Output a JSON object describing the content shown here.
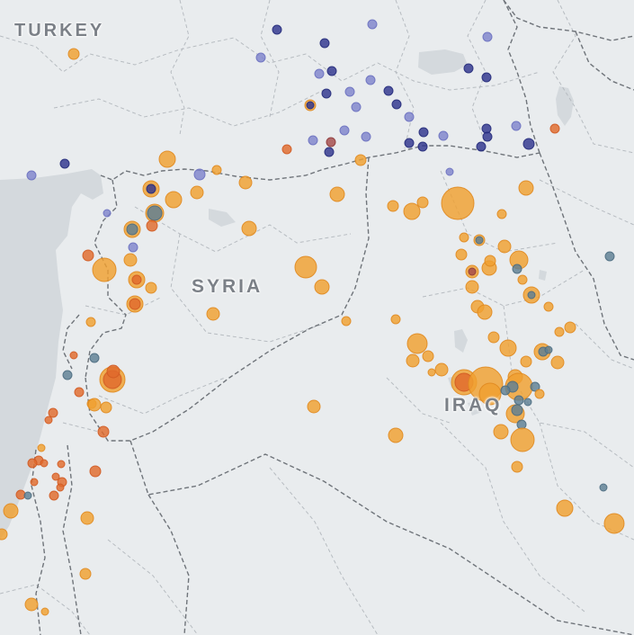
{
  "labels": {
    "turkey": "TURKEY",
    "syria": "SYRIA",
    "iraq": "IRAQ"
  },
  "colors": {
    "background": "#e9ecee",
    "water": "#d4d9dd",
    "border": "#6f747a",
    "province_border": "#b7bcc1",
    "orange": "#f0a030",
    "red_orange": "#e06a2c",
    "blue_light": "#7f84cc",
    "blue_dark": "#2f358e",
    "slate": "#5e7f94",
    "maroon": "#a44a4a"
  },
  "point_types": {
    "o": {
      "fill": "#f0a030",
      "stroke": "#e08a20"
    },
    "r": {
      "fill": "#e06a2c",
      "stroke": "#d05a22"
    },
    "b": {
      "fill": "#7f84cc",
      "stroke": "#6a70c0"
    },
    "d": {
      "fill": "#2f358e",
      "stroke": "#242a7a"
    },
    "s": {
      "fill": "#5e7f94",
      "stroke": "#4b6b80"
    },
    "m": {
      "fill": "#a44a4a",
      "stroke": "#8f3a3a"
    }
  },
  "event_points": [
    [
      "o",
      82,
      60,
      6
    ],
    [
      "d",
      308,
      33,
      5
    ],
    [
      "d",
      361,
      48,
      5
    ],
    [
      "b",
      414,
      27,
      5
    ],
    [
      "b",
      542,
      41,
      5
    ],
    [
      "b",
      290,
      64,
      5
    ],
    [
      "b",
      355,
      82,
      5
    ],
    [
      "d",
      369,
      79,
      5
    ],
    [
      "b",
      412,
      89,
      5
    ],
    [
      "d",
      521,
      76,
      5
    ],
    [
      "d",
      541,
      86,
      5
    ],
    [
      "b",
      389,
      102,
      5
    ],
    [
      "d",
      432,
      101,
      5
    ],
    [
      "d",
      363,
      104,
      5
    ],
    [
      "b",
      396,
      119,
      5
    ],
    [
      "d",
      441,
      116,
      5
    ],
    [
      "o",
      345,
      117,
      6
    ],
    [
      "d",
      345,
      117,
      4
    ],
    [
      "b",
      455,
      130,
      5
    ],
    [
      "b",
      383,
      145,
      5
    ],
    [
      "d",
      541,
      143,
      5
    ],
    [
      "b",
      574,
      140,
      5
    ],
    [
      "b",
      348,
      156,
      5
    ],
    [
      "m",
      368,
      158,
      5
    ],
    [
      "b",
      407,
      152,
      5
    ],
    [
      "d",
      455,
      159,
      5
    ],
    [
      "d",
      471,
      147,
      5
    ],
    [
      "b",
      493,
      151,
      5
    ],
    [
      "d",
      542,
      152,
      5
    ],
    [
      "d",
      470,
      163,
      5
    ],
    [
      "d",
      535,
      163,
      5
    ],
    [
      "d",
      588,
      160,
      6
    ],
    [
      "r",
      617,
      143,
      5
    ],
    [
      "r",
      319,
      166,
      5
    ],
    [
      "d",
      366,
      169,
      5
    ],
    [
      "o",
      401,
      178,
      6
    ],
    [
      "d",
      72,
      182,
      5
    ],
    [
      "b",
      35,
      195,
      5
    ],
    [
      "o",
      186,
      177,
      9
    ],
    [
      "o",
      241,
      189,
      5
    ],
    [
      "b",
      222,
      194,
      6
    ],
    [
      "o",
      273,
      203,
      7
    ],
    [
      "b",
      500,
      191,
      4
    ],
    [
      "o",
      168,
      210,
      9
    ],
    [
      "d",
      168,
      210,
      5
    ],
    [
      "o",
      193,
      222,
      9
    ],
    [
      "o",
      172,
      237,
      10
    ],
    [
      "s",
      172,
      237,
      8
    ],
    [
      "o",
      219,
      214,
      7
    ],
    [
      "o",
      375,
      216,
      8
    ],
    [
      "o",
      509,
      226,
      18
    ],
    [
      "o",
      585,
      209,
      8
    ],
    [
      "o",
      437,
      229,
      6
    ],
    [
      "o",
      458,
      235,
      9
    ],
    [
      "o",
      470,
      225,
      6
    ],
    [
      "b",
      119,
      237,
      4
    ],
    [
      "o",
      147,
      255,
      9
    ],
    [
      "s",
      147,
      255,
      6
    ],
    [
      "r",
      169,
      251,
      6
    ],
    [
      "o",
      277,
      254,
      8
    ],
    [
      "o",
      558,
      238,
      5
    ],
    [
      "b",
      148,
      275,
      5
    ],
    [
      "r",
      98,
      284,
      6
    ],
    [
      "o",
      145,
      289,
      7
    ],
    [
      "o",
      116,
      300,
      13
    ],
    [
      "o",
      516,
      264,
      5
    ],
    [
      "o",
      533,
      267,
      6
    ],
    [
      "s",
      533,
      267,
      4
    ],
    [
      "o",
      561,
      274,
      7
    ],
    [
      "o",
      513,
      283,
      6
    ],
    [
      "o",
      340,
      297,
      12
    ],
    [
      "o",
      525,
      302,
      7
    ],
    [
      "m",
      525,
      302,
      4
    ],
    [
      "o",
      544,
      298,
      8
    ],
    [
      "o",
      545,
      290,
      6
    ],
    [
      "o",
      577,
      289,
      10
    ],
    [
      "s",
      575,
      299,
      5
    ],
    [
      "o",
      152,
      311,
      9
    ],
    [
      "r",
      152,
      311,
      5
    ],
    [
      "o",
      168,
      320,
      6
    ],
    [
      "o",
      358,
      319,
      8
    ],
    [
      "o",
      581,
      311,
      5
    ],
    [
      "o",
      525,
      319,
      7
    ],
    [
      "o",
      591,
      328,
      9
    ],
    [
      "s",
      591,
      328,
      4
    ],
    [
      "s",
      678,
      285,
      5
    ],
    [
      "o",
      150,
      338,
      9
    ],
    [
      "r",
      150,
      338,
      6
    ],
    [
      "o",
      237,
      349,
      7
    ],
    [
      "o",
      531,
      341,
      7
    ],
    [
      "o",
      539,
      347,
      8
    ],
    [
      "o",
      610,
      341,
      5
    ],
    [
      "o",
      101,
      358,
      5
    ],
    [
      "o",
      385,
      357,
      5
    ],
    [
      "o",
      440,
      355,
      5
    ],
    [
      "o",
      634,
      364,
      6
    ],
    [
      "o",
      549,
      375,
      6
    ],
    [
      "o",
      622,
      369,
      5
    ],
    [
      "o",
      464,
      382,
      11
    ],
    [
      "o",
      565,
      387,
      9
    ],
    [
      "r",
      82,
      395,
      4
    ],
    [
      "s",
      105,
      398,
      5
    ],
    [
      "o",
      459,
      401,
      7
    ],
    [
      "o",
      476,
      396,
      6
    ],
    [
      "o",
      491,
      411,
      7
    ],
    [
      "o",
      480,
      414,
      4
    ],
    [
      "o",
      585,
      402,
      6
    ],
    [
      "o",
      603,
      391,
      9
    ],
    [
      "s",
      604,
      391,
      5
    ],
    [
      "s",
      610,
      389,
      4
    ],
    [
      "o",
      620,
      403,
      7
    ],
    [
      "s",
      75,
      417,
      5
    ],
    [
      "o",
      125,
      422,
      14
    ],
    [
      "r",
      125,
      422,
      10
    ],
    [
      "r",
      126,
      413,
      7
    ],
    [
      "o",
      516,
      425,
      14
    ],
    [
      "r",
      516,
      425,
      10
    ],
    [
      "o",
      540,
      427,
      19
    ],
    [
      "o",
      545,
      438,
      12
    ],
    [
      "o",
      573,
      419,
      8
    ],
    [
      "o",
      577,
      430,
      15
    ],
    [
      "s",
      570,
      430,
      6
    ],
    [
      "s",
      562,
      434,
      5
    ],
    [
      "s",
      595,
      430,
      5
    ],
    [
      "o",
      600,
      438,
      5
    ],
    [
      "s",
      577,
      445,
      5
    ],
    [
      "s",
      587,
      447,
      4
    ],
    [
      "r",
      88,
      436,
      5
    ],
    [
      "o",
      102,
      449,
      5
    ],
    [
      "o",
      105,
      450,
      7
    ],
    [
      "o",
      118,
      453,
      6
    ],
    [
      "o",
      349,
      452,
      7
    ],
    [
      "o",
      573,
      460,
      10
    ],
    [
      "s",
      575,
      456,
      6
    ],
    [
      "s",
      580,
      472,
      5
    ],
    [
      "r",
      59,
      459,
      5
    ],
    [
      "r",
      54,
      467,
      4
    ],
    [
      "r",
      115,
      480,
      6
    ],
    [
      "o",
      557,
      480,
      8
    ],
    [
      "o",
      440,
      484,
      8
    ],
    [
      "o",
      581,
      489,
      13
    ],
    [
      "o",
      46,
      498,
      4
    ],
    [
      "r",
      43,
      512,
      5
    ],
    [
      "r",
      49,
      515,
      4
    ],
    [
      "r",
      36,
      515,
      5
    ],
    [
      "r",
      68,
      516,
      4
    ],
    [
      "r",
      106,
      524,
      6
    ],
    [
      "r",
      62,
      530,
      4
    ],
    [
      "r",
      69,
      536,
      5
    ],
    [
      "r",
      67,
      542,
      4
    ],
    [
      "o",
      575,
      519,
      6
    ],
    [
      "r",
      38,
      536,
      4
    ],
    [
      "r",
      23,
      550,
      5
    ],
    [
      "s",
      31,
      551,
      4
    ],
    [
      "r",
      60,
      551,
      5
    ],
    [
      "o",
      12,
      568,
      8
    ],
    [
      "o",
      97,
      576,
      7
    ],
    [
      "o",
      628,
      565,
      9
    ],
    [
      "o",
      683,
      582,
      11
    ],
    [
      "s",
      671,
      542,
      4
    ],
    [
      "o",
      2,
      594,
      6
    ],
    [
      "o",
      95,
      638,
      6
    ],
    [
      "o",
      35,
      672,
      7
    ],
    [
      "o",
      50,
      680,
      4
    ]
  ]
}
